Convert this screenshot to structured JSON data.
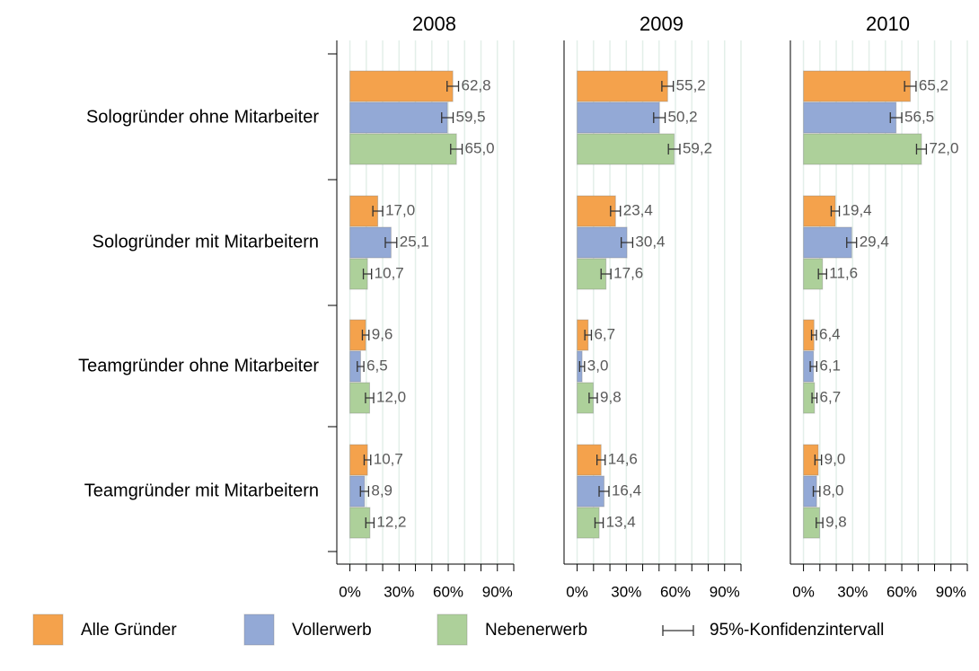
{
  "chart_data": {
    "type": "bar",
    "orientation": "horizontal",
    "categories": [
      "Sologründer ohne Mitarbeiter",
      "Sologründer mit Mitarbeitern",
      "Teamgründer ohne Mitarbeiter",
      "Teamgründer mit Mitarbeitern"
    ],
    "series": [
      {
        "name": "Alle Gründer",
        "color": "#f4a24c"
      },
      {
        "name": "Vollerwerb",
        "color": "#93a9d6"
      },
      {
        "name": "Nebenerwerb",
        "color": "#add09a"
      }
    ],
    "error_label": "95%-Konfidenzintervall",
    "xlim": [
      -8,
      100
    ],
    "xticks": [
      {
        "value": 0,
        "label": "0%"
      },
      {
        "value": 30,
        "label": "30%"
      },
      {
        "value": 60,
        "label": "60%"
      },
      {
        "value": 90,
        "label": "90%"
      }
    ],
    "minor_xticks": [
      0,
      10,
      20,
      30,
      40,
      50,
      60,
      70,
      80,
      90,
      100
    ],
    "panels": [
      {
        "title": "2008",
        "series": [
          {
            "values": [
              62.8,
              17.0,
              9.6,
              10.7
            ],
            "value_labels": [
              "62,8",
              "17,0",
              "9,6",
              "10,7"
            ],
            "errors": [
              3.5,
              3,
              2,
              2
            ]
          },
          {
            "values": [
              59.5,
              25.1,
              6.5,
              8.9
            ],
            "value_labels": [
              "59,5",
              "25,1",
              "6,5",
              "8,9"
            ],
            "errors": [
              3.5,
              3.5,
              2,
              2.5
            ]
          },
          {
            "values": [
              65.0,
              10.7,
              12.0,
              12.2
            ],
            "value_labels": [
              "65,0",
              "10,7",
              "12,0",
              "12,2"
            ],
            "errors": [
              3.5,
              2.5,
              2.5,
              2.5
            ]
          }
        ]
      },
      {
        "title": "2009",
        "series": [
          {
            "values": [
              55.2,
              23.4,
              6.7,
              14.6
            ],
            "value_labels": [
              "55,2",
              "23,4",
              "6,7",
              "14,6"
            ],
            "errors": [
              3.5,
              3,
              2,
              2.5
            ]
          },
          {
            "values": [
              50.2,
              30.4,
              3.0,
              16.4
            ],
            "value_labels": [
              "50,2",
              "30,4",
              "3,0",
              "16,4"
            ],
            "errors": [
              3.5,
              3.5,
              1.5,
              3
            ]
          },
          {
            "values": [
              59.2,
              17.6,
              9.8,
              13.4
            ],
            "value_labels": [
              "59,2",
              "17,6",
              "9,8",
              "13,4"
            ],
            "errors": [
              3.5,
              3,
              2.5,
              2.5
            ]
          }
        ]
      },
      {
        "title": "2010",
        "series": [
          {
            "values": [
              65.2,
              19.4,
              6.4,
              9.0
            ],
            "value_labels": [
              "65,2",
              "19,4",
              "6,4",
              "9,0"
            ],
            "errors": [
              3.5,
              2.5,
              1.5,
              2
            ]
          },
          {
            "values": [
              56.5,
              29.4,
              6.1,
              8.0
            ],
            "value_labels": [
              "56,5",
              "29,4",
              "6,1",
              "8,0"
            ],
            "errors": [
              3.5,
              3,
              2,
              2
            ]
          },
          {
            "values": [
              72.0,
              11.6,
              6.7,
              9.8
            ],
            "value_labels": [
              "72,0",
              "11,6",
              "6,7",
              "9,8"
            ],
            "errors": [
              3,
              2.5,
              1.5,
              2
            ]
          }
        ]
      }
    ]
  }
}
